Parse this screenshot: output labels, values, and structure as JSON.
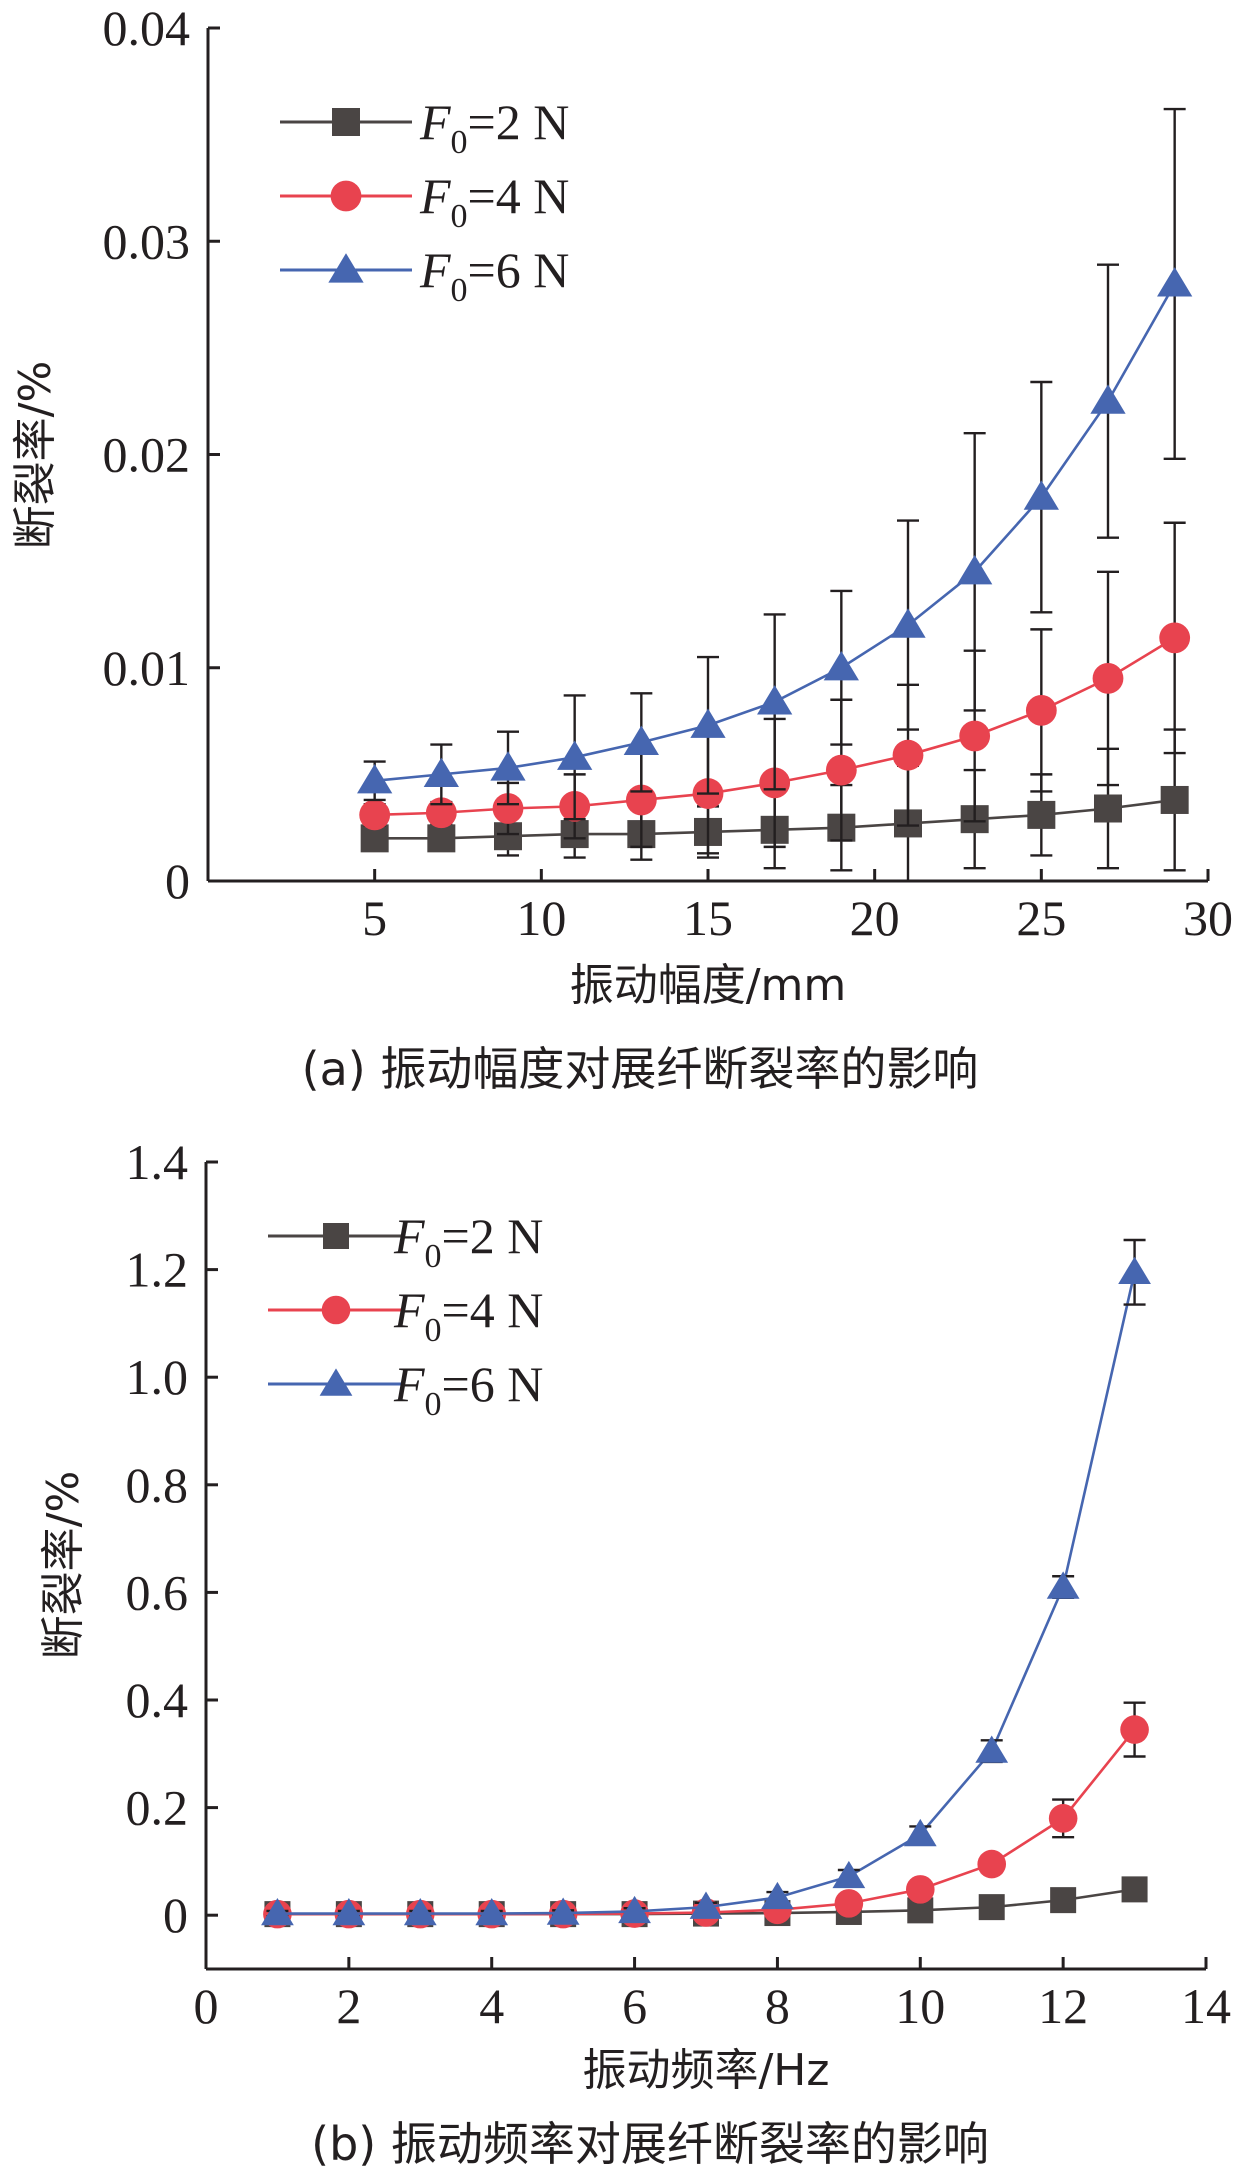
{
  "chart_data": [
    {
      "type": "line",
      "caption": "(a) 振动幅度对展纤断裂率的影响",
      "xlabel": "振动幅度/mm",
      "ylabel": "断裂率/%",
      "xlim": [
        0,
        30
      ],
      "ylim": [
        0,
        0.04
      ],
      "xticks": [
        5,
        10,
        15,
        20,
        25,
        30
      ],
      "xtick_labels": [
        "5",
        "10",
        "15",
        "20",
        "25",
        "30"
      ],
      "yticks": [
        0,
        0.01,
        0.02,
        0.03,
        0.04
      ],
      "ytick_labels": [
        "0",
        "0.01",
        "0.02",
        "0.03",
        "0.04"
      ],
      "legend_position": "top-left",
      "grid": false,
      "x": [
        5,
        7,
        9,
        11,
        13,
        15,
        17,
        19,
        21,
        23,
        25,
        27,
        29
      ],
      "series": [
        {
          "name": "F0=2 N",
          "legend_var": "F",
          "legend_sub": "0",
          "legend_rest": "=2 N",
          "color": "#4a4544",
          "marker": "square",
          "values": [
            0.002,
            0.002,
            0.0021,
            0.0022,
            0.0022,
            0.0023,
            0.0024,
            0.0025,
            0.0027,
            0.0029,
            0.0031,
            0.0034,
            0.0038
          ],
          "errors": [
            0.0003,
            0.0003,
            0.0009,
            0.0011,
            0.0012,
            0.0012,
            0.0018,
            0.002,
            0.0027,
            0.0023,
            0.0019,
            0.0028,
            0.0033
          ]
        },
        {
          "name": "F0=4 N",
          "legend_var": "F",
          "legend_sub": "0",
          "legend_rest": "=4 N",
          "color": "#e8434f",
          "marker": "circle",
          "values": [
            0.0031,
            0.0032,
            0.0034,
            0.0035,
            0.0038,
            0.0041,
            0.0046,
            0.0052,
            0.0059,
            0.0068,
            0.008,
            0.0095,
            0.0114
          ],
          "errors": [
            0.0005,
            0.0005,
            0.0012,
            0.0015,
            0.0022,
            0.0028,
            0.003,
            0.0033,
            0.0033,
            0.004,
            0.0038,
            0.005,
            0.0054
          ]
        },
        {
          "name": "F0=6 N",
          "legend_var": "F",
          "legend_sub": "0",
          "legend_rest": "=6 N",
          "color": "#4666b0",
          "marker": "triangle",
          "values": [
            0.0047,
            0.005,
            0.0053,
            0.0058,
            0.0065,
            0.0073,
            0.0084,
            0.01,
            0.012,
            0.0145,
            0.018,
            0.0225,
            0.028
          ],
          "errors": [
            0.0009,
            0.0014,
            0.0017,
            0.0029,
            0.0023,
            0.0032,
            0.0041,
            0.0036,
            0.0049,
            0.0065,
            0.0054,
            0.0064,
            0.0082
          ]
        }
      ]
    },
    {
      "type": "line",
      "caption": "(b) 振动频率对展纤断裂率的影响",
      "xlabel": "振动频率/Hz",
      "ylabel": "断裂率/%",
      "xlim": [
        0,
        14
      ],
      "ylim": [
        -0.1,
        1.4
      ],
      "xticks": [
        0,
        2,
        4,
        6,
        8,
        10,
        12,
        14
      ],
      "xtick_labels": [
        "0",
        "2",
        "4",
        "6",
        "8",
        "10",
        "12",
        "14"
      ],
      "yticks": [
        0,
        0.2,
        0.4,
        0.6,
        0.8,
        1.0,
        1.2,
        1.4
      ],
      "ytick_labels": [
        "0",
        "0.2",
        "0.4",
        "0.6",
        "0.8",
        "1.0",
        "1.2",
        "1.4"
      ],
      "legend_position": "top-left",
      "grid": false,
      "x": [
        1,
        2,
        3,
        4,
        5,
        6,
        7,
        8,
        9,
        10,
        11,
        12,
        13
      ],
      "series": [
        {
          "name": "F0=2 N",
          "legend_var": "F",
          "legend_sub": "0",
          "legend_rest": "=2 N",
          "color": "#4a4544",
          "marker": "square",
          "values": [
            0.002,
            0.002,
            0.002,
            0.002,
            0.002,
            0.002,
            0.003,
            0.004,
            0.006,
            0.009,
            0.015,
            0.028,
            0.048
          ],
          "errors": [
            0.005,
            0.005,
            0.005,
            0.005,
            0.005,
            0.005,
            0.005,
            0.005,
            0.006,
            0.006,
            0.008,
            0.01,
            0.012
          ]
        },
        {
          "name": "F0=4 N",
          "legend_var": "F",
          "legend_sub": "0",
          "legend_rest": "=4 N",
          "color": "#e8434f",
          "marker": "circle",
          "values": [
            0.002,
            0.002,
            0.002,
            0.002,
            0.002,
            0.003,
            0.005,
            0.01,
            0.022,
            0.048,
            0.095,
            0.18,
            0.345
          ],
          "errors": [
            0.004,
            0.004,
            0.004,
            0.004,
            0.004,
            0.004,
            0.005,
            0.006,
            0.008,
            0.012,
            0.015,
            0.035,
            0.05
          ]
        },
        {
          "name": "F0=6 N",
          "legend_var": "F",
          "legend_sub": "0",
          "legend_rest": "=6 N",
          "color": "#4666b0",
          "marker": "triangle",
          "values": [
            0.003,
            0.003,
            0.003,
            0.003,
            0.004,
            0.007,
            0.015,
            0.033,
            0.072,
            0.15,
            0.305,
            0.61,
            1.195
          ],
          "errors": [
            0.005,
            0.005,
            0.005,
            0.005,
            0.005,
            0.006,
            0.008,
            0.01,
            0.012,
            0.015,
            0.02,
            0.02,
            0.06
          ]
        }
      ]
    }
  ]
}
